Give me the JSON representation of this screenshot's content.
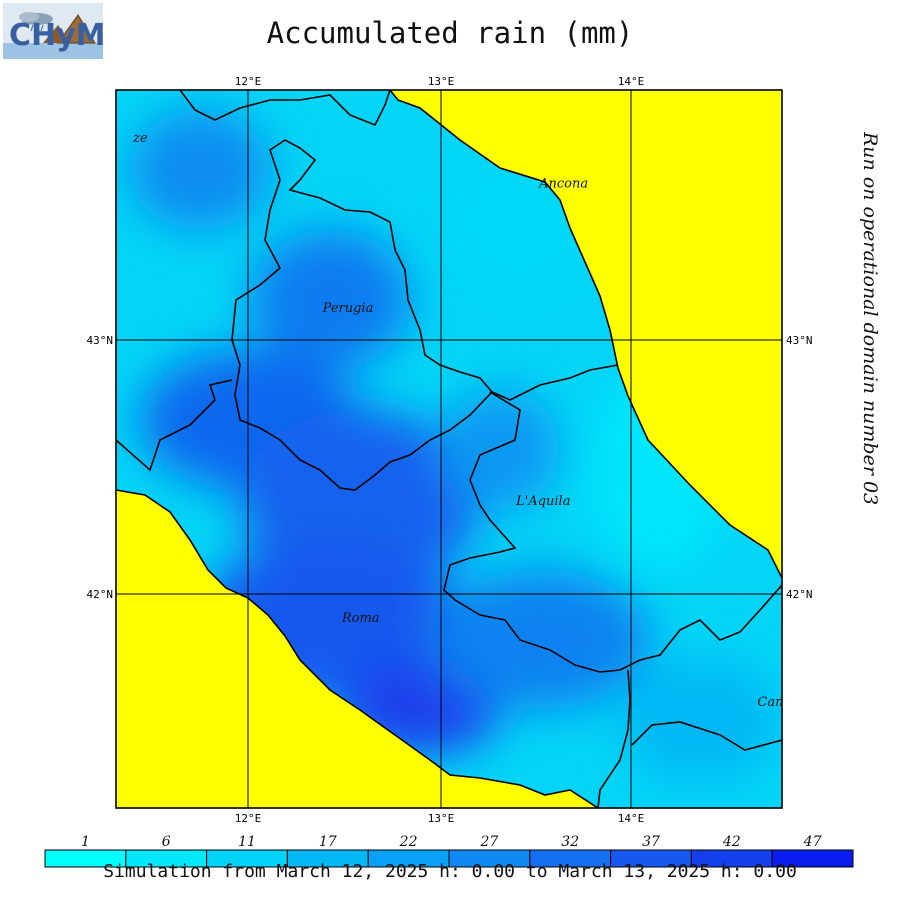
{
  "title": "Accumulated rain (mm)",
  "side_title": "Run on operational domain number 03",
  "footer": "Simulation from March 12, 2025 h: 0.00 to March 13, 2025 h: 0.00",
  "logo_text": "CHyM",
  "colors": {
    "sea": "#ffff00",
    "rain_low": "#00ffff",
    "rain_mid": "#0aa0f5",
    "rain_high": "#1a46ee",
    "border": "#000000"
  },
  "axes": {
    "top_labels": [
      "12°E",
      "13°E",
      "14°E"
    ],
    "bottom_labels": [
      "12°E",
      "13°E",
      "14°E"
    ],
    "left_labels": [
      "43°N",
      "42°N"
    ],
    "right_labels": [
      "43°N",
      "42°N"
    ]
  },
  "cities": [
    {
      "name": "ze",
      "lon": 11.4,
      "lat": 43.78
    },
    {
      "name": "Ancona",
      "lon": 13.52,
      "lat": 43.6
    },
    {
      "name": "Perugia",
      "lon": 12.39,
      "lat": 43.11
    },
    {
      "name": "L'Aquila",
      "lon": 13.4,
      "lat": 42.35
    },
    {
      "name": "Roma",
      "lon": 12.49,
      "lat": 41.89
    },
    {
      "name": "Campoba",
      "lon": 14.66,
      "lat": 41.56
    }
  ],
  "colorbar": {
    "labels": [
      "1",
      "6",
      "11",
      "17",
      "22",
      "27",
      "32",
      "37",
      "42",
      "47"
    ],
    "colors": [
      "#00ffff",
      "#00e8fa",
      "#00d2f8",
      "#05b8f5",
      "#0aa0f5",
      "#1088f2",
      "#1470f0",
      "#1858ee",
      "#1440ec",
      "#0a1cf0"
    ]
  }
}
